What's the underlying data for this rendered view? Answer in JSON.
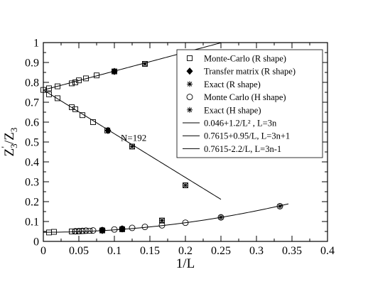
{
  "chart_data": {
    "type": "scatter",
    "xlabel": "1/L",
    "ylabel_main": "Z",
    "ylabel_sub_num": "3",
    "ylabel_sup_num": "'",
    "ylabel_slash": "/Z",
    "ylabel_sub_den": "3",
    "xlim": [
      0,
      0.4
    ],
    "ylim": [
      0,
      1
    ],
    "xticks": [
      0,
      0.05,
      0.1,
      0.15,
      0.2,
      0.25,
      0.3,
      0.35,
      0.4
    ],
    "xtick_labels": [
      "0",
      "0.05",
      "0.1",
      "0.15",
      "0.2",
      "0.25",
      "0.3",
      "0.35",
      "0.4"
    ],
    "yticks": [
      0,
      0.1,
      0.2,
      0.3,
      0.4,
      0.5,
      0.6,
      0.7,
      0.8,
      0.9,
      1
    ],
    "ytick_labels": [
      "0",
      "0.1",
      "0.2",
      "0.3",
      "0.4",
      "0.5",
      "0.6",
      "0.7",
      "0.8",
      "0.9",
      "1"
    ],
    "legend_position": "top-right",
    "annotation": "N=192",
    "series": [
      {
        "name": "Monte-Carlo (R shape)",
        "marker": "square",
        "x": [
          0,
          0.008,
          0.02,
          0.04,
          0.045,
          0.05,
          0.06,
          0.075,
          0.1,
          0.143,
          0.008,
          0.02,
          0.04,
          0.045,
          0.055,
          0.07,
          0.09,
          0.125,
          0.2,
          0.008,
          0.015,
          0.04,
          0.045,
          0.05,
          0.055,
          0.065,
          0.083,
          0.111,
          0.167
        ],
        "y": [
          0.762,
          0.77,
          0.78,
          0.795,
          0.8,
          0.81,
          0.82,
          0.835,
          0.855,
          0.893,
          0.74,
          0.72,
          0.675,
          0.665,
          0.635,
          0.6,
          0.558,
          0.477,
          0.282,
          0.045,
          0.048,
          0.05,
          0.05,
          0.051,
          0.052,
          0.053,
          0.055,
          0.061,
          0.105
        ]
      },
      {
        "name": "Transfer matrix (R shape)",
        "marker": "diamond",
        "x": [
          0.1,
          0.091,
          0.083,
          0.111
        ],
        "y": [
          0.855,
          0.558,
          0.055,
          0.063
        ]
      },
      {
        "name": "Exact (R shape)",
        "marker": "star",
        "x": [
          0.1,
          0.143,
          0.091,
          0.125,
          0.2,
          0.083,
          0.111,
          0.167
        ],
        "y": [
          0.855,
          0.893,
          0.558,
          0.477,
          0.282,
          0.055,
          0.063,
          0.105
        ]
      },
      {
        "name": "Monte Carlo (H shape)",
        "marker": "circle",
        "x": [
          0.045,
          0.05,
          0.055,
          0.06,
          0.07,
          0.083,
          0.1,
          0.111,
          0.125,
          0.143,
          0.167,
          0.2,
          0.25,
          0.333
        ],
        "y": [
          0.051,
          0.052,
          0.053,
          0.054,
          0.055,
          0.057,
          0.06,
          0.063,
          0.068,
          0.073,
          0.081,
          0.094,
          0.121,
          0.177
        ]
      },
      {
        "name": "Exact (H shape)",
        "marker": "star",
        "x": [
          0.25,
          0.333
        ],
        "y": [
          0.121,
          0.177
        ]
      },
      {
        "name": "0.046+1.2/L² , L=3n",
        "marker": "line",
        "coef": [
          0.046,
          1.2
        ],
        "form": "quadratic",
        "x_range": [
          0,
          0.345
        ]
      },
      {
        "name": "0.7615+0.95/L, L=3n+1",
        "marker": "line",
        "coef": [
          0.7615,
          0.95
        ],
        "form": "linear",
        "x_range": [
          0,
          0.25
        ]
      },
      {
        "name": "0.7615-2.2/L, L=3n-1",
        "marker": "line",
        "coef": [
          0.7615,
          -2.2
        ],
        "form": "linear",
        "x_range": [
          0,
          0.25
        ]
      }
    ]
  }
}
